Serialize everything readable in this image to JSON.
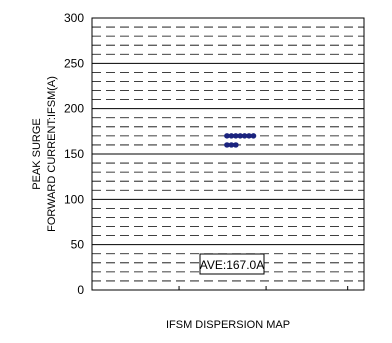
{
  "chart_data": {
    "type": "scatter",
    "title": "",
    "xlabel": "IFSM DISPERSION MAP",
    "ylabel_lines": [
      "PEAK SURGE",
      "FORWARD CURRENT:IFSM(A)"
    ],
    "ylim": [
      0,
      300
    ],
    "y_major_ticks": [
      0,
      50,
      100,
      150,
      200,
      250,
      300
    ],
    "y_minor_step": 10,
    "grid": true,
    "series": [
      {
        "values": [
          170,
          170,
          170,
          170,
          170,
          170,
          170,
          160,
          160,
          160
        ],
        "color": "#1a237e"
      }
    ],
    "annotation": "AVE:167.0A"
  }
}
